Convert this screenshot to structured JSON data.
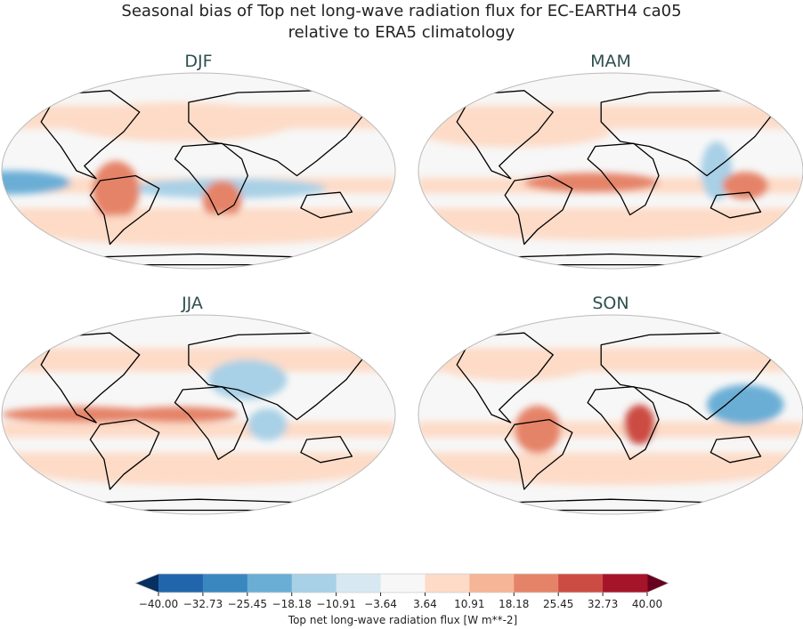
{
  "figure": {
    "title_line1": "Seasonal bias of Top net long-wave radiation flux for EC-EARTH4 ca05",
    "title_line2": "relative to ERA5 climatology"
  },
  "panels": [
    {
      "label": "DJF"
    },
    {
      "label": "MAM"
    },
    {
      "label": "JJA"
    },
    {
      "label": "SON"
    }
  ],
  "colorbar": {
    "label": "Top net long-wave radiation flux [W m**-2]",
    "ticks": [
      "−40.00",
      "−32.73",
      "−25.45",
      "−18.18",
      "−10.91",
      "−3.64",
      "3.64",
      "10.91",
      "18.18",
      "25.45",
      "32.73",
      "40.00"
    ],
    "range": [
      -40,
      40
    ],
    "extend": "both",
    "colors": [
      "#2166ac",
      "#3a87bf",
      "#6aaed6",
      "#a8d0e6",
      "#d7e8f2",
      "#f7f7f7",
      "#fddbc7",
      "#f6b596",
      "#e58368",
      "#cc4c43",
      "#a51429"
    ],
    "under_color": "#053061",
    "over_color": "#67001f"
  }
}
